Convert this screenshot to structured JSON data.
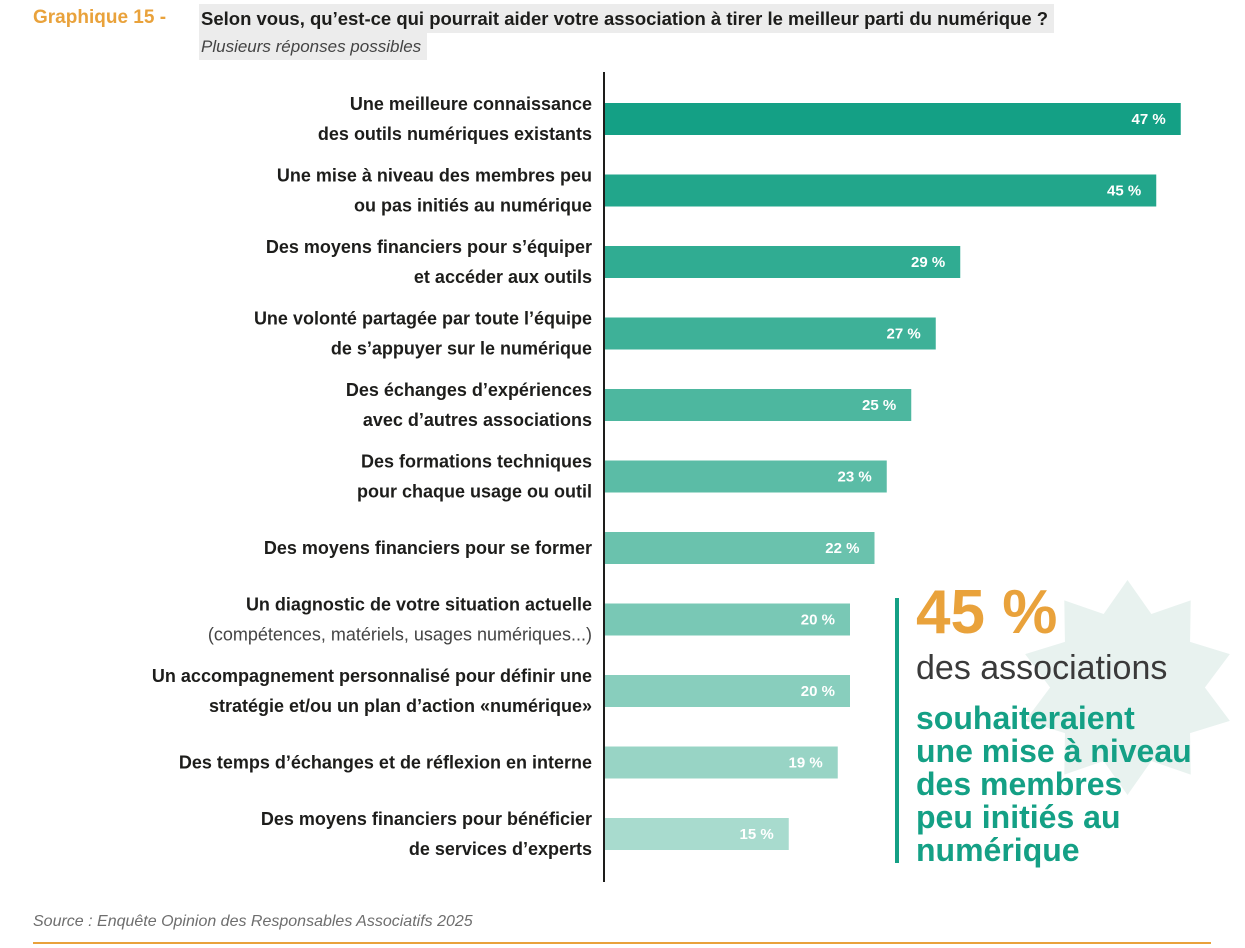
{
  "header": {
    "graph_number": "Graphique 15 -",
    "title": "Selon vous, qu’est-ce qui pourrait aider votre association à tirer le meilleur parti du numérique ?",
    "subtitle": "Plusieurs réponses possibles"
  },
  "chart_data": {
    "type": "bar",
    "orientation": "horizontal",
    "title": "Selon vous, qu’est-ce qui pourrait aider votre association à tirer le meilleur parti du numérique ?",
    "xlim": [
      0,
      50
    ],
    "categories": [
      [
        "Une meilleure connaissance",
        "des outils numériques existants"
      ],
      [
        "Une mise à niveau des membres peu",
        "ou pas initiés au numérique"
      ],
      [
        "Des moyens financiers pour s’équiper",
        "et accéder aux outils"
      ],
      [
        "Une volonté partagée par toute l’équipe",
        "de s’appuyer sur le numérique"
      ],
      [
        "Des échanges d’expériences",
        "avec d’autres associations"
      ],
      [
        "Des formations techniques",
        "pour chaque usage ou outil"
      ],
      [
        "Des moyens financiers pour se former"
      ],
      [
        "Un diagnostic de votre situation actuelle",
        "(compétences, matériels, usages numériques...)"
      ],
      [
        "Un accompagnement personnalisé pour définir une",
        "stratégie et/ou un plan d’action «numérique»"
      ],
      [
        "Des temps d’échanges et de réflexion en interne"
      ],
      [
        "Des moyens financiers pour bénéficier",
        "de services d’experts"
      ]
    ],
    "values": [
      47,
      45,
      29,
      27,
      25,
      23,
      22,
      20,
      20,
      19,
      15
    ],
    "value_labels": [
      "47 %",
      "45 %",
      "29 %",
      "27 %",
      "25 %",
      "23 %",
      "22 %",
      "20 %",
      "20 %",
      "19 %",
      "15 %"
    ],
    "colors": [
      "#14a085",
      "#22a68b",
      "#30ac92",
      "#3eb198",
      "#4db79f",
      "#5bbca6",
      "#6ac2ad",
      "#79c8b5",
      "#88cebd",
      "#98d4c5",
      "#a8dbce"
    ]
  },
  "callout": {
    "percent": "45 %",
    "line1": "des associations",
    "body": "souhaiteraient\nune mise à niveau\ndes membres\npeu initiés au\nnumérique"
  },
  "source": "Source : Enquête Opinion des Responsables Associatifs 2025",
  "colors": {
    "accent_orange": "#e9a23b",
    "accent_green": "#14a085",
    "star": "#e8f2ef"
  }
}
